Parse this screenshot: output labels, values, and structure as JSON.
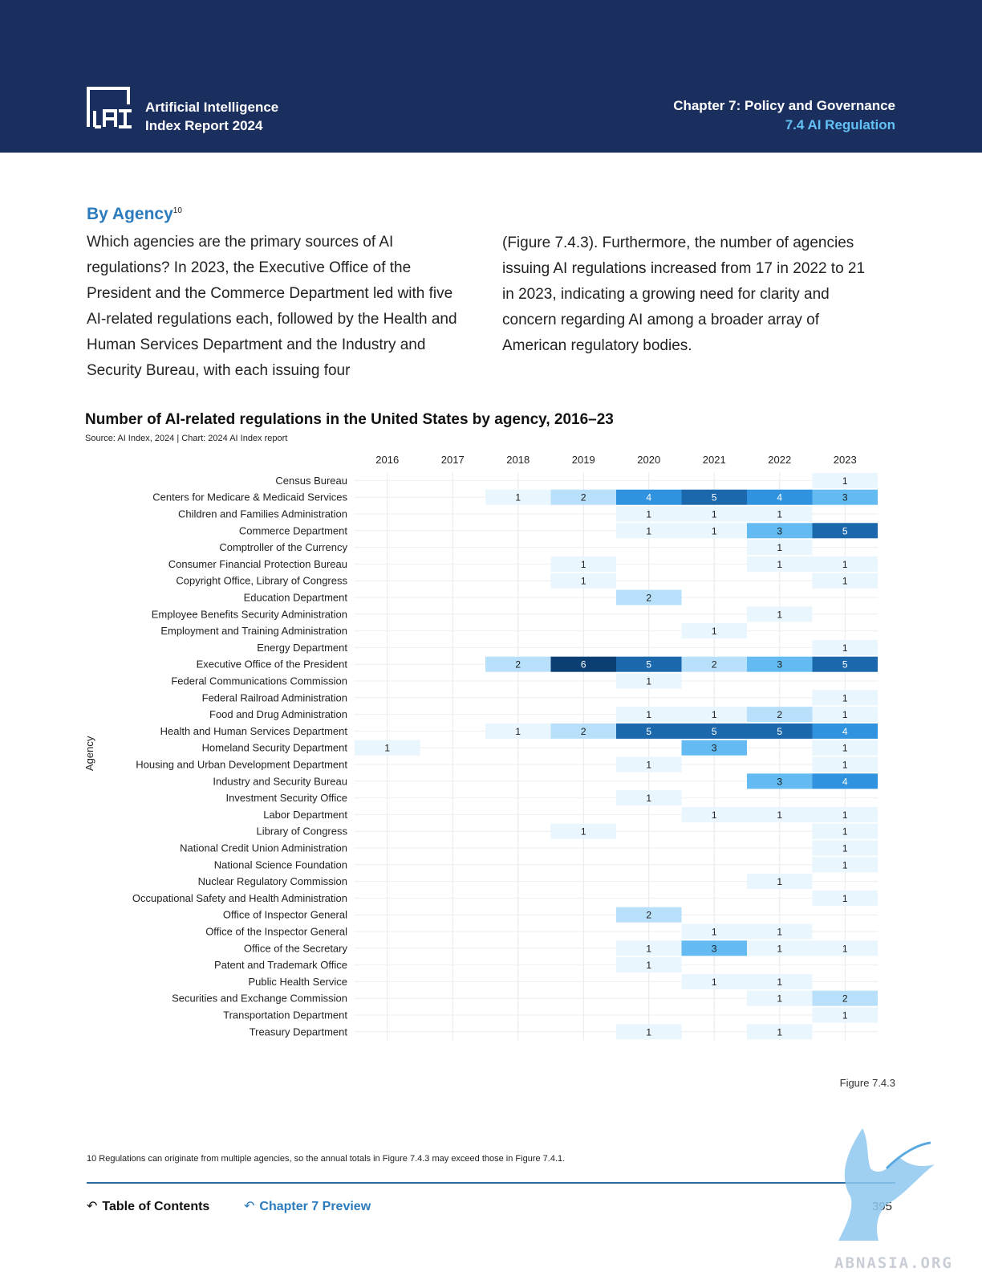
{
  "header": {
    "brand_line1": "Artificial Intelligence",
    "brand_line2": "Index Report 2024",
    "chapter": "Chapter 7: Policy and Governance",
    "section": "7.4 AI Regulation",
    "logo_icon": "ai-index-logo-icon"
  },
  "body": {
    "section_title": "By Agency",
    "section_footnote_ref": "10",
    "paragraph_left": "Which agencies are the primary sources of AI regulations? In 2023, the Executive Office of the President and the Commerce Department led with five AI-related regulations each, followed by the Health and Human Services Department and the Industry and Security Bureau, with each issuing four",
    "paragraph_right": "(Figure 7.4.3). Furthermore, the number of agencies issuing AI regulations increased from 17 in 2022 to 21 in 2023, indicating a growing need for clarity and concern regarding AI among a broader array of American regulatory bodies."
  },
  "chart_data": {
    "type": "heatmap",
    "title": "Number of AI-related regulations in the United States by agency, 2016–23",
    "source": "Source: AI Index, 2024 | Chart: 2024 AI Index report",
    "ylabel": "Agency",
    "x": [
      "2016",
      "2017",
      "2018",
      "2019",
      "2020",
      "2021",
      "2022",
      "2023"
    ],
    "y": [
      "Census Bureau",
      "Centers for Medicare & Medicaid Services",
      "Children and Families Administration",
      "Commerce Department",
      "Comptroller of the Currency",
      "Consumer Financial Protection Bureau",
      "Copyright Office, Library of Congress",
      "Education Department",
      "Employee Benefits Security Administration",
      "Employment and Training Administration",
      "Energy Department",
      "Executive Office of the President",
      "Federal Communications Commission",
      "Federal Railroad Administration",
      "Food and Drug Administration",
      "Health and Human Services Department",
      "Homeland Security Department",
      "Housing and Urban Development Department",
      "Industry and Security Bureau",
      "Investment Security Office",
      "Labor Department",
      "Library of Congress",
      "National Credit Union Administration",
      "National Science Foundation",
      "Nuclear Regulatory Commission",
      "Occupational Safety and Health Administration",
      "Office of Inspector General",
      "Office of the Inspector General",
      "Office of the Secretary",
      "Patent and Trademark Office",
      "Public Health Service",
      "Securities and Exchange Commission",
      "Transportation Department",
      "Treasury Department"
    ],
    "values": [
      [
        null,
        null,
        null,
        null,
        null,
        null,
        null,
        1
      ],
      [
        null,
        null,
        1,
        2,
        4,
        5,
        4,
        3
      ],
      [
        null,
        null,
        null,
        null,
        1,
        1,
        1,
        null
      ],
      [
        null,
        null,
        null,
        null,
        1,
        1,
        3,
        5
      ],
      [
        null,
        null,
        null,
        null,
        null,
        null,
        1,
        null
      ],
      [
        null,
        null,
        null,
        1,
        null,
        null,
        1,
        1
      ],
      [
        null,
        null,
        null,
        1,
        null,
        null,
        null,
        1
      ],
      [
        null,
        null,
        null,
        null,
        2,
        null,
        null,
        null
      ],
      [
        null,
        null,
        null,
        null,
        null,
        null,
        1,
        null
      ],
      [
        null,
        null,
        null,
        null,
        null,
        1,
        null,
        null
      ],
      [
        null,
        null,
        null,
        null,
        null,
        null,
        null,
        1
      ],
      [
        null,
        null,
        2,
        6,
        5,
        2,
        3,
        5
      ],
      [
        null,
        null,
        null,
        null,
        1,
        null,
        null,
        null
      ],
      [
        null,
        null,
        null,
        null,
        null,
        null,
        null,
        1
      ],
      [
        null,
        null,
        null,
        null,
        1,
        1,
        2,
        1
      ],
      [
        null,
        null,
        1,
        2,
        5,
        5,
        5,
        4
      ],
      [
        1,
        null,
        null,
        null,
        null,
        3,
        null,
        1
      ],
      [
        null,
        null,
        null,
        null,
        1,
        null,
        null,
        1
      ],
      [
        null,
        null,
        null,
        null,
        null,
        null,
        3,
        4
      ],
      [
        null,
        null,
        null,
        null,
        1,
        null,
        null,
        null
      ],
      [
        null,
        null,
        null,
        null,
        null,
        1,
        1,
        1
      ],
      [
        null,
        null,
        null,
        1,
        null,
        null,
        null,
        1
      ],
      [
        null,
        null,
        null,
        null,
        null,
        null,
        null,
        1
      ],
      [
        null,
        null,
        null,
        null,
        null,
        null,
        null,
        1
      ],
      [
        null,
        null,
        null,
        null,
        null,
        null,
        1,
        null
      ],
      [
        null,
        null,
        null,
        null,
        null,
        null,
        null,
        1
      ],
      [
        null,
        null,
        null,
        null,
        2,
        null,
        null,
        null
      ],
      [
        null,
        null,
        null,
        null,
        null,
        1,
        1,
        null
      ],
      [
        null,
        null,
        null,
        null,
        1,
        3,
        1,
        1
      ],
      [
        null,
        null,
        null,
        null,
        1,
        null,
        null,
        null
      ],
      [
        null,
        null,
        null,
        null,
        null,
        1,
        1,
        null
      ],
      [
        null,
        null,
        null,
        null,
        null,
        null,
        1,
        2
      ],
      [
        null,
        null,
        null,
        null,
        null,
        null,
        null,
        1
      ],
      [
        null,
        null,
        null,
        null,
        1,
        null,
        1,
        null
      ]
    ],
    "colors": {
      "1": "#eaf6fd",
      "2": "#b8e0fa",
      "3": "#63bbf2",
      "4": "#2f93df",
      "5": "#1c68ad",
      "6": "#0b3f73"
    },
    "grid": true
  },
  "figure_label": "Figure 7.4.3",
  "footnote": "10 Regulations can originate from multiple agencies, so the annual totals in Figure 7.4.3 may exceed those in Figure 7.4.1.",
  "footer": {
    "toc_label": "Table of Contents",
    "chapter_preview_label": "Chapter 7 Preview",
    "page_number": "395"
  },
  "watermark": "ABNASIA.ORG"
}
